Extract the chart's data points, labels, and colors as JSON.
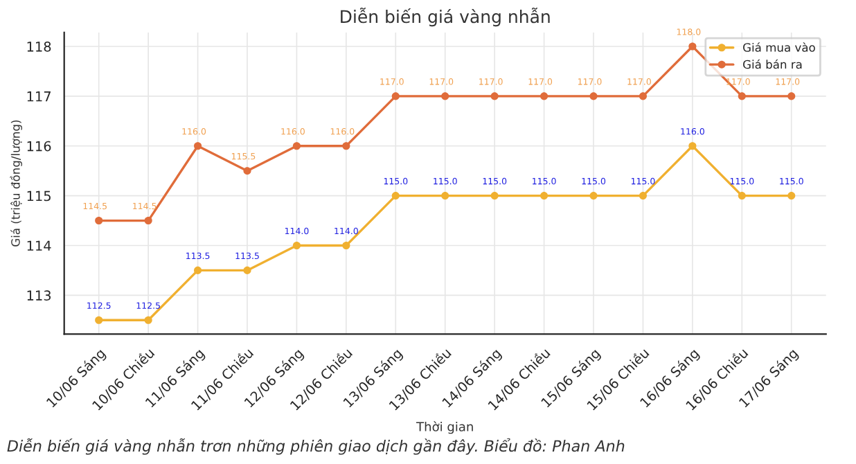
{
  "chart_data": {
    "type": "line",
    "title": "Diễn biến giá vàng nhẫn",
    "xlabel": "Thời gian",
    "ylabel": "Giá (triệu đồng/lượng)",
    "categories": [
      "10/06 Sáng",
      "10/06 Chiều",
      "11/06 Sáng",
      "11/06 Chiều",
      "12/06 Sáng",
      "12/06 Chiều",
      "13/06 Sáng",
      "13/06 Chiều",
      "14/06 Sáng",
      "14/06 Chiều",
      "15/06 Sáng",
      "15/06 Chiều",
      "16/06 Sáng",
      "16/06 Chiều",
      "17/06 Sáng"
    ],
    "series": [
      {
        "name": "Giá mua vào",
        "color": "#f0b030",
        "values": [
          112.5,
          112.5,
          113.5,
          113.5,
          114.0,
          114.0,
          115.0,
          115.0,
          115.0,
          115.0,
          115.0,
          115.0,
          116.0,
          115.0,
          115.0
        ],
        "value_labels": [
          "112.5",
          "112.5",
          "113.5",
          "113.5",
          "114.0",
          "114.0",
          "115.0",
          "115.0",
          "115.0",
          "115.0",
          "115.0",
          "115.0",
          "116.0",
          "115.0",
          "115.0"
        ]
      },
      {
        "name": "Giá bán ra",
        "color": "#e06c3a",
        "values": [
          114.5,
          114.5,
          116.0,
          115.5,
          116.0,
          116.0,
          117.0,
          117.0,
          117.0,
          117.0,
          117.0,
          117.0,
          118.0,
          117.0,
          117.0
        ],
        "value_labels": [
          "114.5",
          "114.5",
          "116.0",
          "115.5",
          "116.0",
          "116.0",
          "117.0",
          "117.0",
          "117.0",
          "117.0",
          "117.0",
          "117.0",
          "118.0",
          "117.0",
          "117.0"
        ]
      }
    ],
    "ylim": [
      112.22,
      118.28
    ],
    "yticks": [
      113,
      114,
      115,
      116,
      117,
      118
    ],
    "grid": true,
    "legend": "top right",
    "marker": "circle",
    "line_style": "solid",
    "annotations": [
      "Diễn biến giá vàng nhẫn trơn những phiên giao dịch gần đây. Biểu đồ: Phan Anh"
    ]
  }
}
